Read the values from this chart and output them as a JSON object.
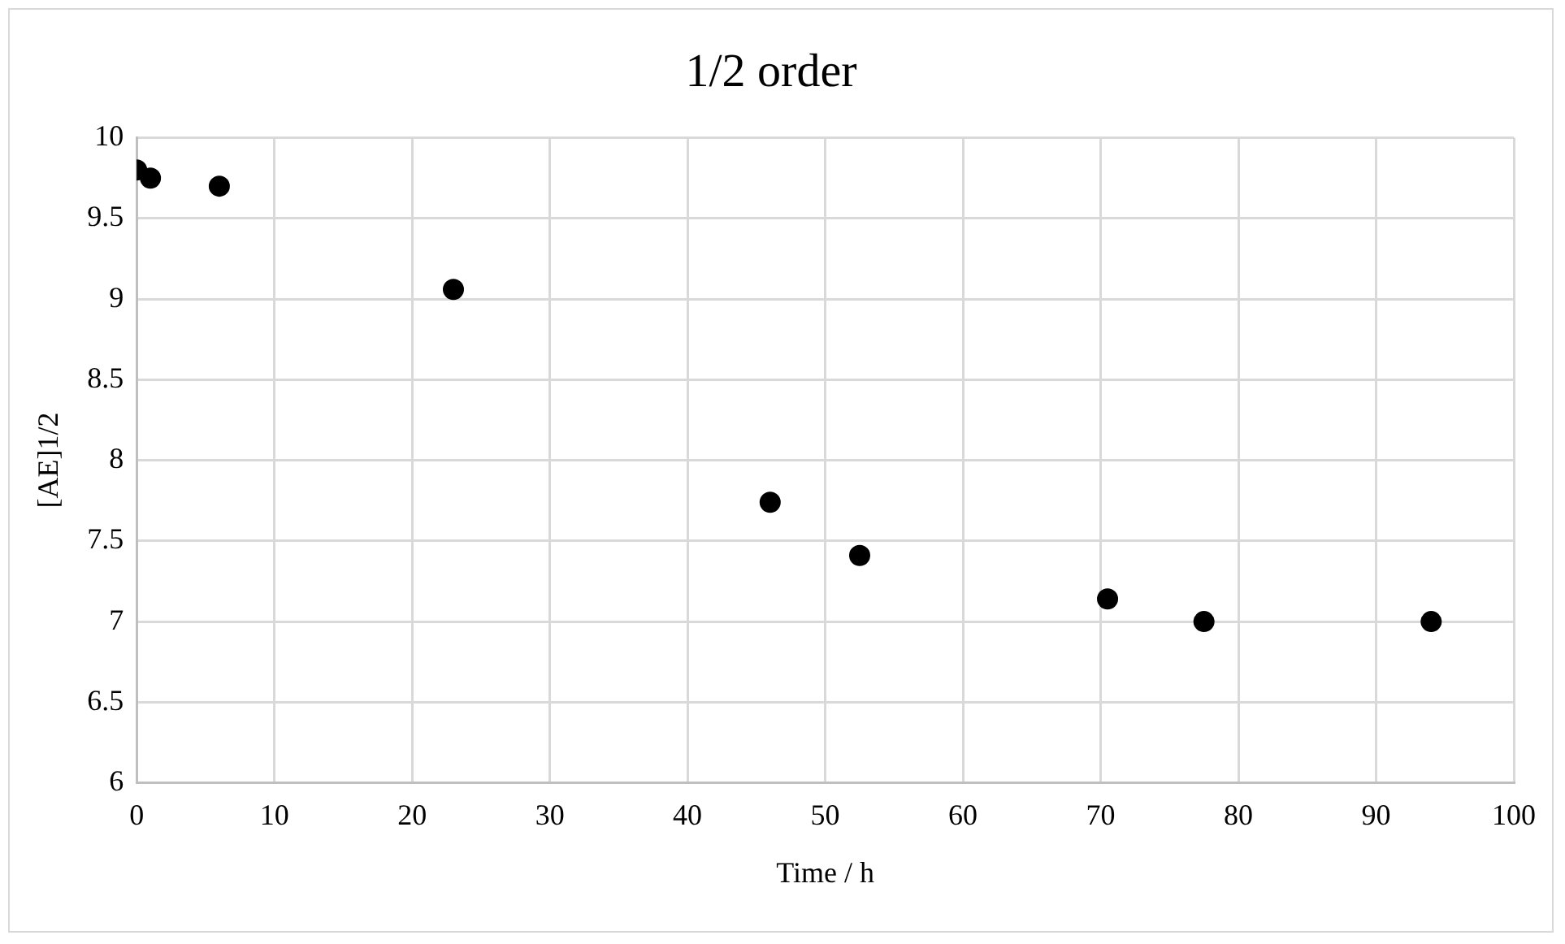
{
  "chart_data": {
    "type": "scatter",
    "title": "1/2 order",
    "xlabel": "Time / h",
    "ylabel": "[AE]1/2",
    "x": [
      0,
      1,
      6,
      23,
      46,
      52.5,
      70.5,
      77.5,
      94
    ],
    "series": [
      {
        "color": "#000000",
        "values": [
          9.8,
          9.75,
          9.7,
          9.06,
          7.74,
          7.41,
          7.14,
          7,
          7
        ]
      }
    ],
    "xlim": [
      0,
      100
    ],
    "xticks": [
      0,
      10,
      20,
      30,
      40,
      50,
      60,
      70,
      80,
      90,
      100
    ],
    "ylim": [
      6,
      10
    ],
    "yticks": [
      6,
      6.5,
      7,
      7.5,
      8,
      8.5,
      9,
      9.5,
      10
    ],
    "grid": true,
    "legend": false,
    "marker": "circle"
  }
}
